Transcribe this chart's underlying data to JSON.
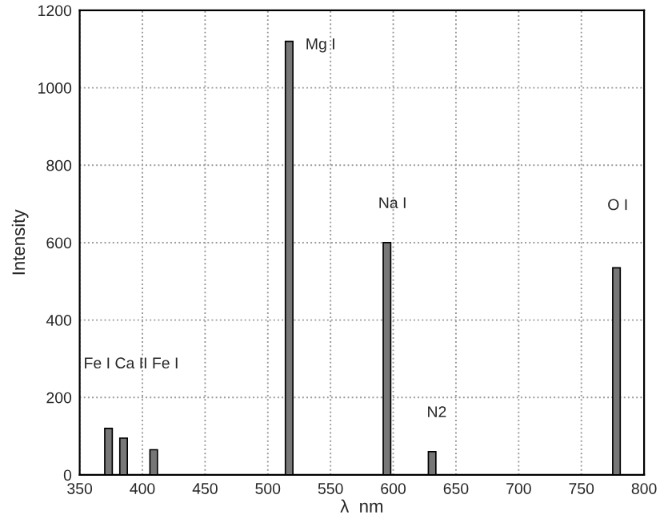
{
  "chart_data": {
    "type": "bar",
    "xlabel": "λ  nm",
    "ylabel": "Intensity",
    "x": [
      373,
      385,
      409,
      517,
      595,
      631,
      778
    ],
    "values": [
      120,
      95,
      65,
      1120,
      600,
      60,
      535
    ],
    "color": "#777777",
    "xlim": [
      350,
      800
    ],
    "xticks": [
      350,
      400,
      450,
      500,
      550,
      600,
      650,
      700,
      750,
      800
    ],
    "ylim": [
      0,
      1200
    ],
    "yticks": [
      0,
      200,
      400,
      600,
      800,
      1000,
      1200
    ],
    "grid": true,
    "annotations": [
      "Fe I Ca II Fe I",
      "Mg I",
      "Na I",
      "N2",
      "O I"
    ]
  }
}
